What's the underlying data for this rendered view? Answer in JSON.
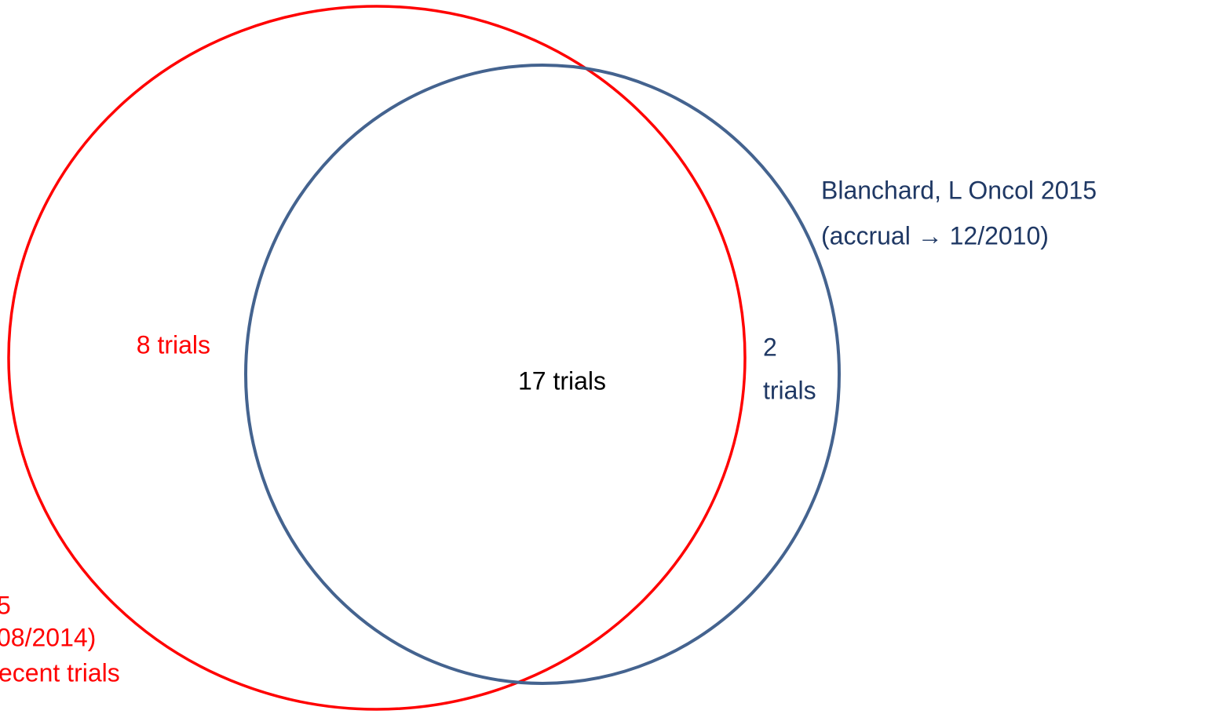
{
  "diagram": {
    "sets": [
      {
        "label_lines": [
          "5",
          "08/2014)",
          "ecent trials"
        ],
        "color": "#ff0000"
      },
      {
        "label_lines": [
          "Blanchard, L Oncol 2015",
          "(accrual → 12/2010)"
        ],
        "color": "#44638f"
      }
    ],
    "regions": {
      "left_only": "8 trials",
      "overlap": "17 trials",
      "right_only_lines": [
        "2",
        "trials"
      ]
    }
  }
}
